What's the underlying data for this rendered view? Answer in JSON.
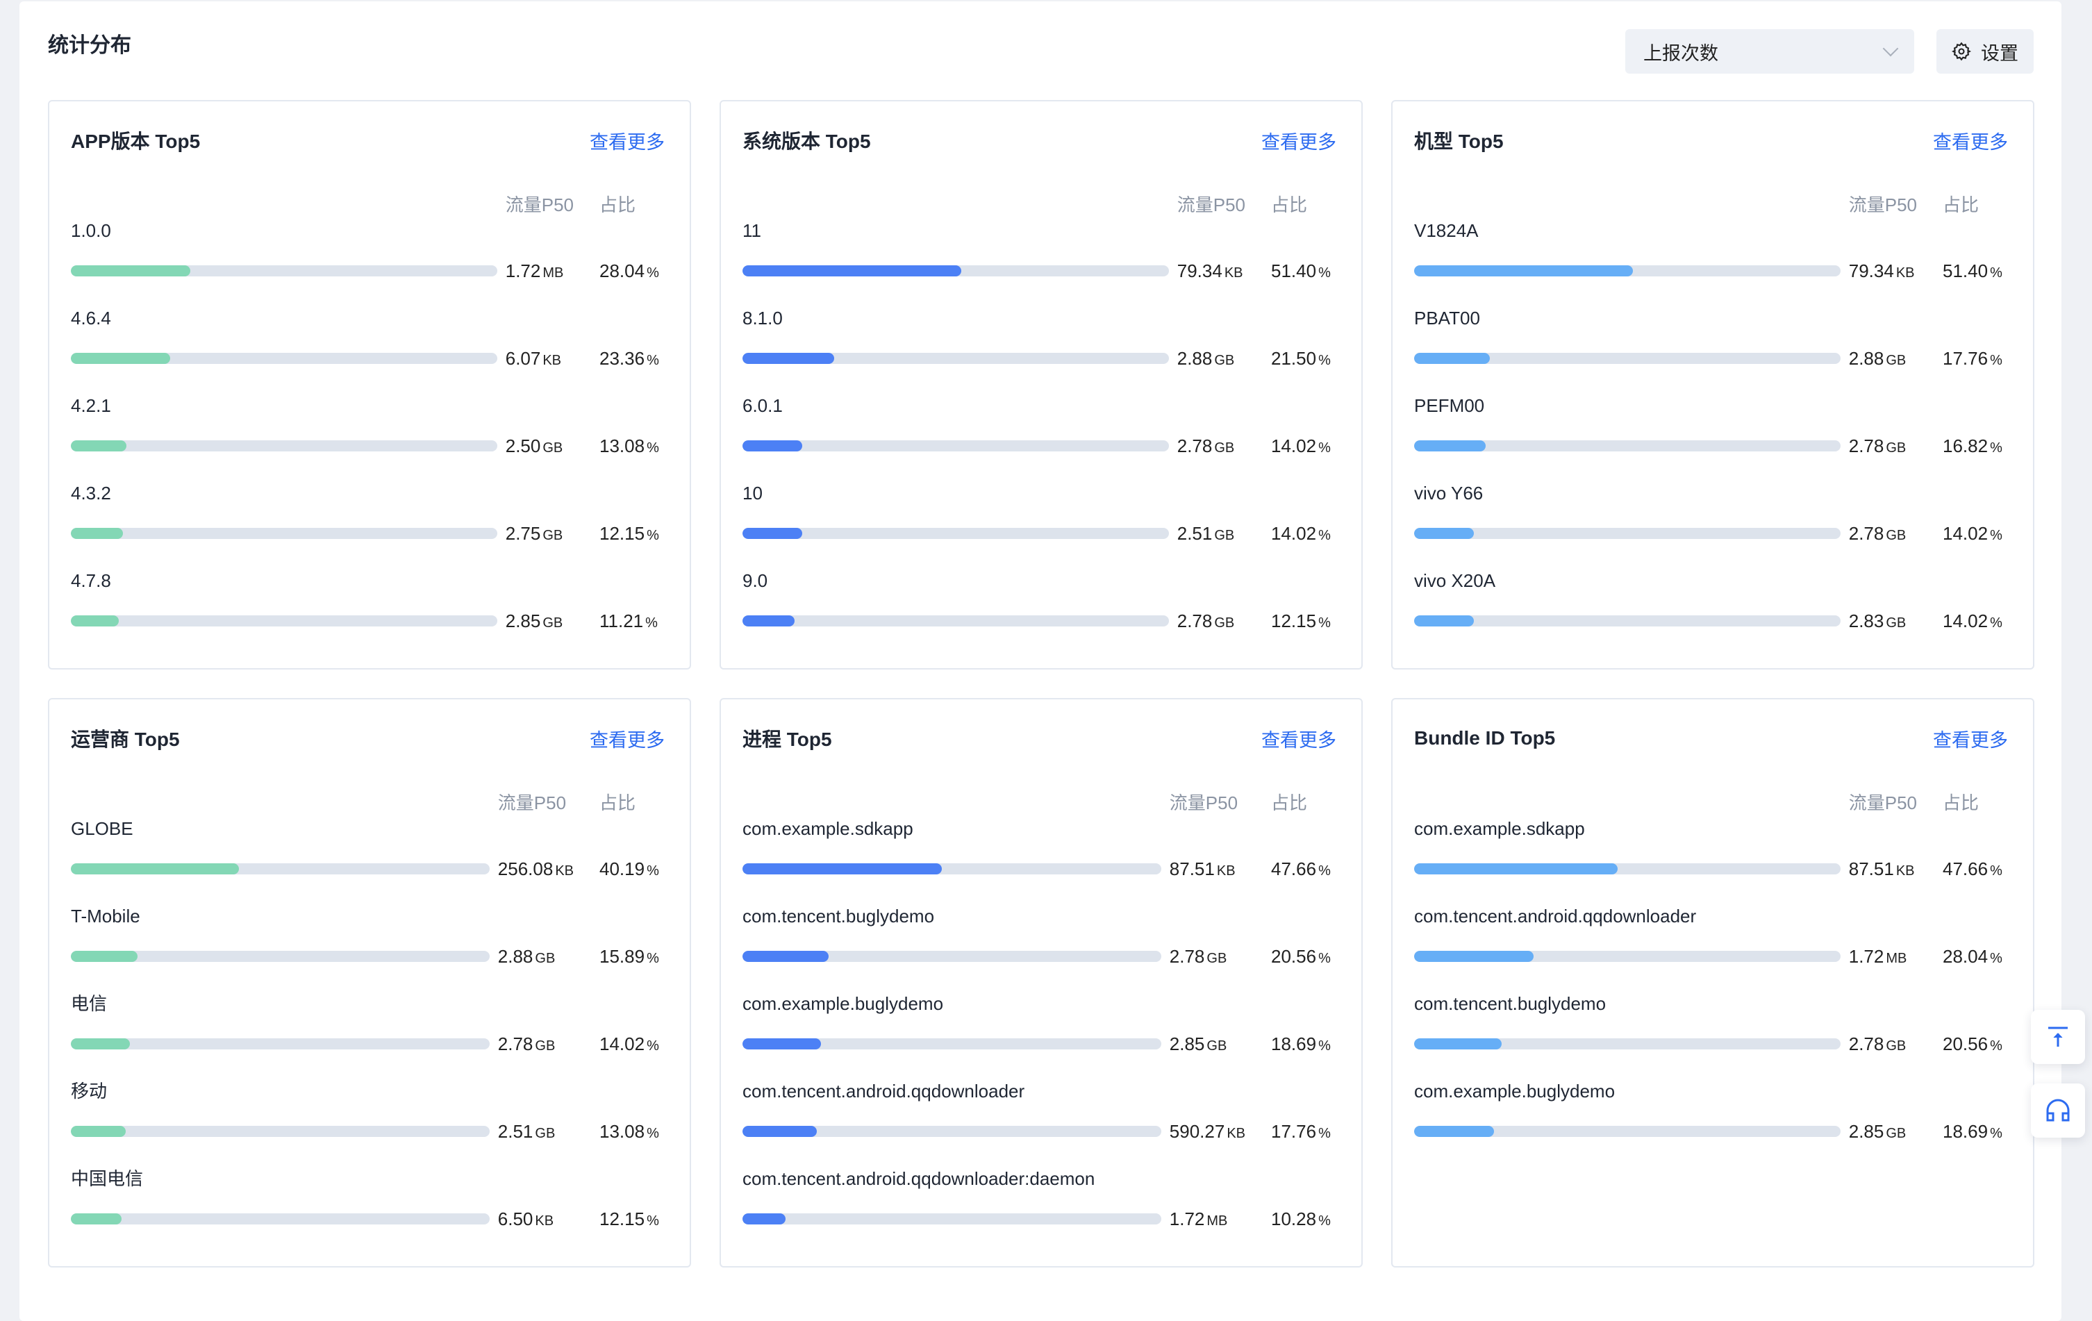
{
  "header": {
    "title": "统计分布",
    "dropdown_value": "上报次数",
    "settings_label": "设置"
  },
  "colors": {
    "green": "#83d7b5",
    "blue": "#4c80f5",
    "lightblue": "#66aef6",
    "link": "#2c6bf0",
    "track": "#dde3ec"
  },
  "columns": {
    "value": "流量P50",
    "percent": "占比"
  },
  "more_label": "查看更多",
  "cards": [
    {
      "title": "APP版本 Top5",
      "color": "green",
      "items": [
        {
          "label": "1.0.0",
          "value": "1.72",
          "unit": "MB",
          "percent": "28.04"
        },
        {
          "label": "4.6.4",
          "value": "6.07",
          "unit": "KB",
          "percent": "23.36"
        },
        {
          "label": "4.2.1",
          "value": "2.50",
          "unit": "GB",
          "percent": "13.08"
        },
        {
          "label": "4.3.2",
          "value": "2.75",
          "unit": "GB",
          "percent": "12.15"
        },
        {
          "label": "4.7.8",
          "value": "2.85",
          "unit": "GB",
          "percent": "11.21"
        }
      ]
    },
    {
      "title": "系统版本 Top5",
      "color": "blue",
      "items": [
        {
          "label": "11",
          "value": "79.34",
          "unit": "KB",
          "percent": "51.40"
        },
        {
          "label": "8.1.0",
          "value": "2.88",
          "unit": "GB",
          "percent": "21.50"
        },
        {
          "label": "6.0.1",
          "value": "2.78",
          "unit": "GB",
          "percent": "14.02"
        },
        {
          "label": "10",
          "value": "2.51",
          "unit": "GB",
          "percent": "14.02"
        },
        {
          "label": "9.0",
          "value": "2.78",
          "unit": "GB",
          "percent": "12.15"
        }
      ]
    },
    {
      "title": "机型 Top5",
      "color": "lightblue",
      "items": [
        {
          "label": "V1824A",
          "value": "79.34",
          "unit": "KB",
          "percent": "51.40"
        },
        {
          "label": "PBAT00",
          "value": "2.88",
          "unit": "GB",
          "percent": "17.76"
        },
        {
          "label": "PEFM00",
          "value": "2.78",
          "unit": "GB",
          "percent": "16.82"
        },
        {
          "label": "vivo Y66",
          "value": "2.78",
          "unit": "GB",
          "percent": "14.02"
        },
        {
          "label": "vivo X20A",
          "value": "2.83",
          "unit": "GB",
          "percent": "14.02"
        }
      ]
    },
    {
      "title": "运营商 Top5",
      "color": "green",
      "items": [
        {
          "label": "GLOBE",
          "value": "256.08",
          "unit": "KB",
          "percent": "40.19"
        },
        {
          "label": "T-Mobile",
          "value": "2.88",
          "unit": "GB",
          "percent": "15.89"
        },
        {
          "label": "电信",
          "value": "2.78",
          "unit": "GB",
          "percent": "14.02"
        },
        {
          "label": "移动",
          "value": "2.51",
          "unit": "GB",
          "percent": "13.08"
        },
        {
          "label": "中国电信",
          "value": "6.50",
          "unit": "KB",
          "percent": "12.15"
        }
      ]
    },
    {
      "title": "进程 Top5",
      "color": "blue",
      "items": [
        {
          "label": "com.example.sdkapp",
          "value": "87.51",
          "unit": "KB",
          "percent": "47.66"
        },
        {
          "label": "com.tencent.buglydemo",
          "value": "2.78",
          "unit": "GB",
          "percent": "20.56"
        },
        {
          "label": "com.example.buglydemo",
          "value": "2.85",
          "unit": "GB",
          "percent": "18.69"
        },
        {
          "label": "com.tencent.android.qqdownloader",
          "value": "590.27",
          "unit": "KB",
          "percent": "17.76"
        },
        {
          "label": "com.tencent.android.qqdownloader:daemon",
          "value": "1.72",
          "unit": "MB",
          "percent": "10.28"
        }
      ]
    },
    {
      "title": "Bundle ID Top5",
      "color": "lightblue",
      "items": [
        {
          "label": "com.example.sdkapp",
          "value": "87.51",
          "unit": "KB",
          "percent": "47.66"
        },
        {
          "label": "com.tencent.android.qqdownloader",
          "value": "1.72",
          "unit": "MB",
          "percent": "28.04"
        },
        {
          "label": "com.tencent.buglydemo",
          "value": "2.78",
          "unit": "GB",
          "percent": "20.56"
        },
        {
          "label": "com.example.buglydemo",
          "value": "2.85",
          "unit": "GB",
          "percent": "18.69"
        }
      ]
    }
  ],
  "fabs": {
    "top_icon": "back-to-top-icon",
    "support_icon": "headset-icon"
  }
}
